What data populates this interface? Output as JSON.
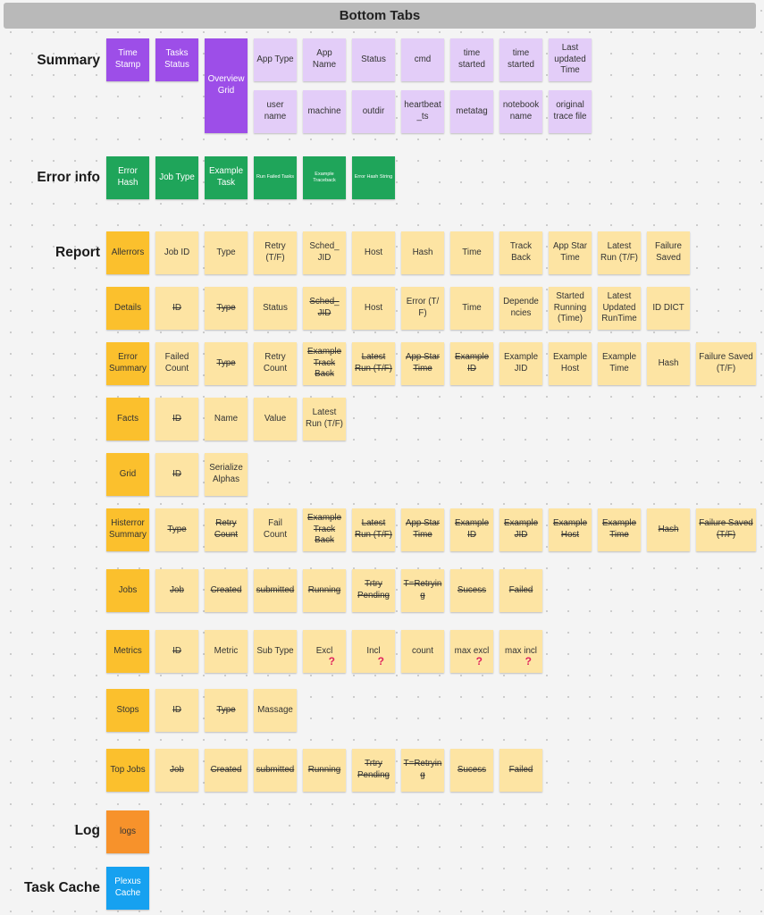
{
  "title": "Bottom Tabs",
  "sections": {
    "summary": {
      "label": "Summary",
      "notes": [
        "Time Stamp",
        "Tasks Status",
        "Overview Grid",
        "App Type",
        "App Name",
        "Status",
        "cmd",
        "time started",
        "time started",
        "Last updated Time",
        "user name",
        "machine",
        "outdir",
        "heartbeat_ts",
        "metatag",
        "notebook name",
        "original trace file"
      ]
    },
    "error_info": {
      "label": "Error info",
      "notes": [
        "Error Hash",
        "Job Type",
        "Example Task",
        "Run Failed Tasks",
        "Example Traceback",
        "Error Hash String"
      ]
    },
    "report": {
      "label": "Report",
      "rows": {
        "allerrors": [
          "Allerrors",
          "Job ID",
          "Type",
          "Retry (T/F)",
          "Sched_ JID",
          "Host",
          "Hash",
          "Time",
          "Track Back",
          "App Star Time",
          "Latest Run (T/F)",
          "Failure Saved"
        ],
        "details": [
          "Details",
          "ID",
          "Type",
          "Status",
          "Sched_ JID",
          "Host",
          "Error (T/ F)",
          "Time",
          "Dependencies",
          "Started Running (Time)",
          "Latest Updated RunTime",
          "ID DICT"
        ],
        "error_summary": [
          "Error Summary",
          "Failed Count",
          "Type",
          "Retry Count",
          "Example Track Back",
          "Latest Run (T/F)",
          "App Star Time",
          "Example ID",
          "Example JID",
          "Example Host",
          "Example Time",
          "Hash",
          "Failure Saved (T/F)"
        ],
        "facts": [
          "Facts",
          "ID",
          "Name",
          "Value",
          "Latest Run (T/F)"
        ],
        "grid": [
          "Grid",
          "ID",
          "Serialize Alphas"
        ],
        "histerror_summary": [
          "Histerror Summary",
          "Type",
          "Retry Count",
          "Fail Count",
          "Example Track Back",
          "Latest Run (T/F)",
          "App Star Time",
          "Example ID",
          "Example JID",
          "Example Host",
          "Example Time",
          "Hash",
          "Failure Saved (T/F)"
        ],
        "jobs": [
          "Jobs",
          "Job",
          "Created",
          "submitted",
          "Running",
          "Trtry Pending",
          "T=Retrying",
          "Sucess",
          "Failed"
        ],
        "metrics": [
          "Metrics",
          "ID",
          "Metric",
          "Sub Type",
          "Excl",
          "Incl",
          "count",
          "max excl",
          "max incl"
        ],
        "stops": [
          "Stops",
          "ID",
          "Type",
          "Massage"
        ],
        "top_jobs": [
          "Top Jobs",
          "Job",
          "Created",
          "submitted",
          "Running",
          "Trtry Pending",
          "T=Retrying",
          "Sucess",
          "Failed"
        ]
      },
      "question_mark": "?"
    },
    "log": {
      "label": "Log",
      "notes": [
        "logs"
      ]
    },
    "task_cache": {
      "label": "Task Cache",
      "notes": [
        "Plexus Cache"
      ]
    }
  },
  "colors": {
    "summary_primary": "#9d4ee8",
    "summary_field": "#e3cdf8",
    "error_info": "#1fa55a",
    "report_tab": "#fbc02d",
    "report_field": "#fde4a3",
    "log": "#f7922b",
    "task_cache": "#16a1f0",
    "question_mark": "#e0245e"
  }
}
